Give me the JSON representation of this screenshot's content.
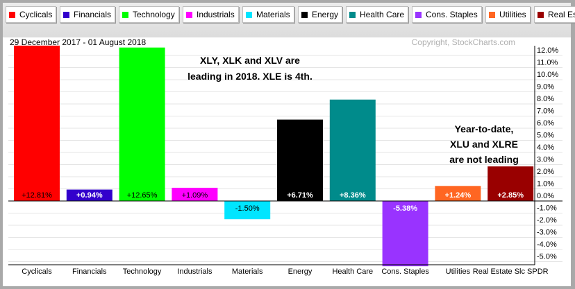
{
  "chart_data": {
    "type": "bar",
    "date_range": "29 December 2017 - 01 August 2018",
    "copyright": "Copyright, StockCharts.com",
    "categories": [
      "Cyclicals",
      "Financials",
      "Technology",
      "Industrials",
      "Materials",
      "Energy",
      "Health Care",
      "Cons. Staples",
      "Utilities",
      "Real Estate Slc SPDR"
    ],
    "values": [
      12.81,
      0.94,
      12.65,
      1.09,
      -1.5,
      6.71,
      8.36,
      -5.38,
      1.24,
      2.85
    ],
    "data_labels": [
      "+12.81%",
      "+0.94%",
      "+12.65%",
      "+1.09%",
      "-1.50%",
      "+6.71%",
      "+8.36%",
      "-5.38%",
      "+1.24%",
      "+2.85%"
    ],
    "colors": [
      "#ff0000",
      "#3300cc",
      "#00ff00",
      "#ff00ff",
      "#00e5ff",
      "#000000",
      "#008b8b",
      "#9933ff",
      "#ff6622",
      "#990000"
    ],
    "label_colors": [
      "#000000",
      "#ffffff",
      "#000000",
      "#000000",
      "#000000",
      "#ffffff",
      "#ffffff",
      "#ffffff",
      "#ffffff",
      "#ffffff"
    ],
    "legend": [
      "Cyclicals",
      "Financials",
      "Technology",
      "Industrials",
      "Materials",
      "Energy",
      "Health Care",
      "Cons. Staples",
      "Utilities",
      "Real Estate Slc SPDR"
    ],
    "yticks": [
      "12.0%",
      "11.0%",
      "10.0%",
      "9.0%",
      "8.0%",
      "7.0%",
      "6.0%",
      "5.0%",
      "4.0%",
      "3.0%",
      "2.0%",
      "1.0%",
      "0.0%",
      "-1.0%",
      "-2.0%",
      "-3.0%",
      "-4.0%",
      "-5.0%"
    ],
    "ylim": [
      -5.6,
      13
    ],
    "annotations": [
      [
        "XLY, XLK and XLV are",
        "leading in 2018. XLE is 4th."
      ],
      [
        "Year-to-date,",
        "XLU and XLRE",
        "are not leading"
      ]
    ]
  }
}
